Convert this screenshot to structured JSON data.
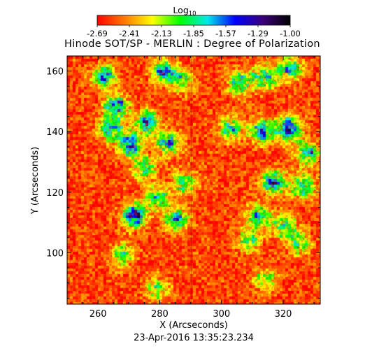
{
  "chart_data": {
    "type": "heatmap",
    "title": "Hinode SOT/SP - MERLIN : Degree of Polarization",
    "xlabel": "X (Arcseconds)",
    "ylabel": "Y (Arcseconds)",
    "timestamp": "23-Apr-2016 13:35:23.234",
    "colorbar": {
      "label_main": "Log",
      "label_sub": "10",
      "min": -2.69,
      "max": -1.0,
      "ticks": [
        "-2.69",
        "-2.41",
        "-2.13",
        "-1.85",
        "-1.57",
        "-1.29",
        "-1.00"
      ],
      "colors": [
        "#ff0000",
        "#ff7a00",
        "#ffff00",
        "#00ff00",
        "#00e8e8",
        "#0000ff",
        "#3a007a",
        "#000000"
      ]
    },
    "xlim": [
      250,
      332
    ],
    "ylim": [
      83,
      165
    ],
    "x_ticks": [
      "260",
      "280",
      "300",
      "320"
    ],
    "y_ticks": [
      "100",
      "120",
      "140",
      "160"
    ],
    "value_range": [
      -2.69,
      -1.0
    ],
    "features": [
      {
        "x": 262,
        "y": 158,
        "strength": 0.55
      },
      {
        "x": 266,
        "y": 148,
        "strength": 0.7
      },
      {
        "x": 264,
        "y": 141,
        "strength": 0.6
      },
      {
        "x": 270,
        "y": 136,
        "strength": 0.75
      },
      {
        "x": 276,
        "y": 143,
        "strength": 0.6
      },
      {
        "x": 283,
        "y": 136,
        "strength": 0.6
      },
      {
        "x": 281,
        "y": 160,
        "strength": 0.55
      },
      {
        "x": 287,
        "y": 157,
        "strength": 0.45
      },
      {
        "x": 275,
        "y": 128,
        "strength": 0.45
      },
      {
        "x": 272,
        "y": 112,
        "strength": 0.8
      },
      {
        "x": 279,
        "y": 118,
        "strength": 0.5
      },
      {
        "x": 285,
        "y": 111,
        "strength": 0.55
      },
      {
        "x": 288,
        "y": 123,
        "strength": 0.45
      },
      {
        "x": 306,
        "y": 156,
        "strength": 0.5
      },
      {
        "x": 314,
        "y": 158,
        "strength": 0.6
      },
      {
        "x": 322,
        "y": 161,
        "strength": 0.55
      },
      {
        "x": 303,
        "y": 141,
        "strength": 0.5
      },
      {
        "x": 313,
        "y": 140,
        "strength": 0.7
      },
      {
        "x": 322,
        "y": 141,
        "strength": 0.75
      },
      {
        "x": 328,
        "y": 133,
        "strength": 0.6
      },
      {
        "x": 317,
        "y": 123,
        "strength": 0.65
      },
      {
        "x": 326,
        "y": 122,
        "strength": 0.6
      },
      {
        "x": 312,
        "y": 112,
        "strength": 0.5
      },
      {
        "x": 320,
        "y": 109,
        "strength": 0.55
      },
      {
        "x": 309,
        "y": 104,
        "strength": 0.4
      },
      {
        "x": 325,
        "y": 103,
        "strength": 0.4
      },
      {
        "x": 268,
        "y": 99,
        "strength": 0.4
      },
      {
        "x": 279,
        "y": 88,
        "strength": 0.35
      },
      {
        "x": 314,
        "y": 91,
        "strength": 0.35
      }
    ]
  }
}
